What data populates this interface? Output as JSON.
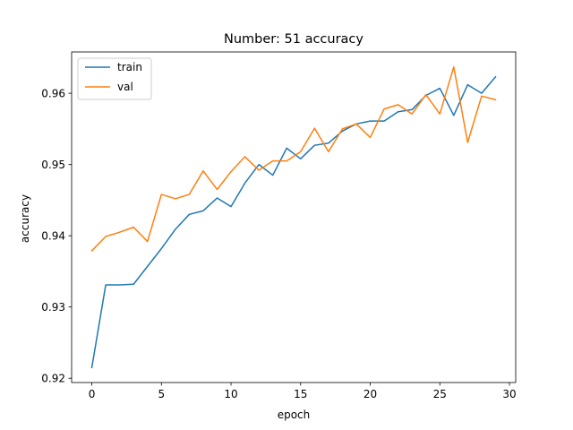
{
  "chart_data": {
    "type": "line",
    "title": "Number: 51 accuracy",
    "xlabel": "epoch",
    "ylabel": "accuracy",
    "xlim": [
      -1.45,
      30.45
    ],
    "ylim": [
      0.9194,
      0.9658
    ],
    "xticks": [
      0,
      5,
      10,
      15,
      20,
      25,
      30
    ],
    "yticks": [
      0.92,
      0.93,
      0.94,
      0.95,
      0.96
    ],
    "xtick_labels": [
      "0",
      "5",
      "10",
      "15",
      "20",
      "25",
      "30"
    ],
    "ytick_labels": [
      "0.92",
      "0.93",
      "0.94",
      "0.95",
      "0.96"
    ],
    "grid": false,
    "legend_position": "upper-left",
    "x": [
      0,
      1,
      2,
      3,
      4,
      5,
      6,
      7,
      8,
      9,
      10,
      11,
      12,
      13,
      14,
      15,
      16,
      17,
      18,
      19,
      20,
      21,
      22,
      23,
      24,
      25,
      26,
      27,
      28,
      29
    ],
    "series": [
      {
        "name": "train",
        "color": "#1f77b4",
        "values": [
          0.9215,
          0.9331,
          0.9331,
          0.9332,
          0.9357,
          0.9382,
          0.9409,
          0.943,
          0.9435,
          0.9453,
          0.9441,
          0.9474,
          0.95,
          0.9485,
          0.9523,
          0.9508,
          0.9527,
          0.953,
          0.9547,
          0.9557,
          0.9561,
          0.9561,
          0.9574,
          0.9577,
          0.9597,
          0.9607,
          0.9569,
          0.9612,
          0.96,
          0.9623
        ]
      },
      {
        "name": "val",
        "color": "#ff7f0e",
        "values": [
          0.9379,
          0.9399,
          0.9405,
          0.9412,
          0.9392,
          0.9458,
          0.9452,
          0.9458,
          0.9491,
          0.9465,
          0.949,
          0.9511,
          0.9492,
          0.9505,
          0.9505,
          0.9518,
          0.9551,
          0.9518,
          0.955,
          0.9557,
          0.9538,
          0.9578,
          0.9584,
          0.9571,
          0.9598,
          0.9571,
          0.9637,
          0.9531,
          0.9596,
          0.9591
        ]
      }
    ]
  }
}
